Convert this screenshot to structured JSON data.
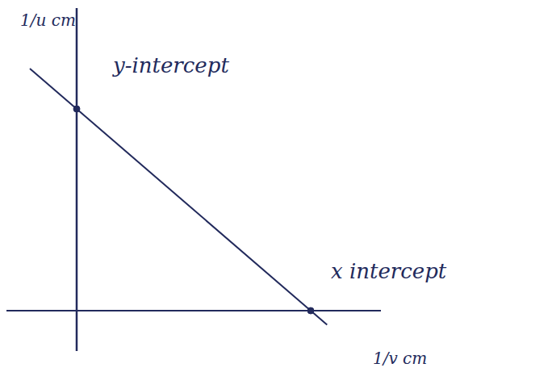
{
  "chart_data": {
    "type": "line",
    "x_label": "1/v cm",
    "y_label": "1/u cm",
    "x": [
      -0.2,
      0,
      1,
      1.07
    ],
    "values": [
      1.2,
      1,
      0,
      -0.07
    ],
    "color": "#222a5c",
    "xlim": [
      -0.3,
      1.3
    ],
    "ylim": [
      -0.2,
      1.5
    ],
    "xticks": [],
    "yticks": [],
    "tick_labels": false,
    "grid": false,
    "annotations": [
      {
        "text": "y-intercept",
        "x": 0,
        "y": 1
      },
      {
        "text": "x intercept",
        "x": 1,
        "y": 0
      }
    ]
  }
}
